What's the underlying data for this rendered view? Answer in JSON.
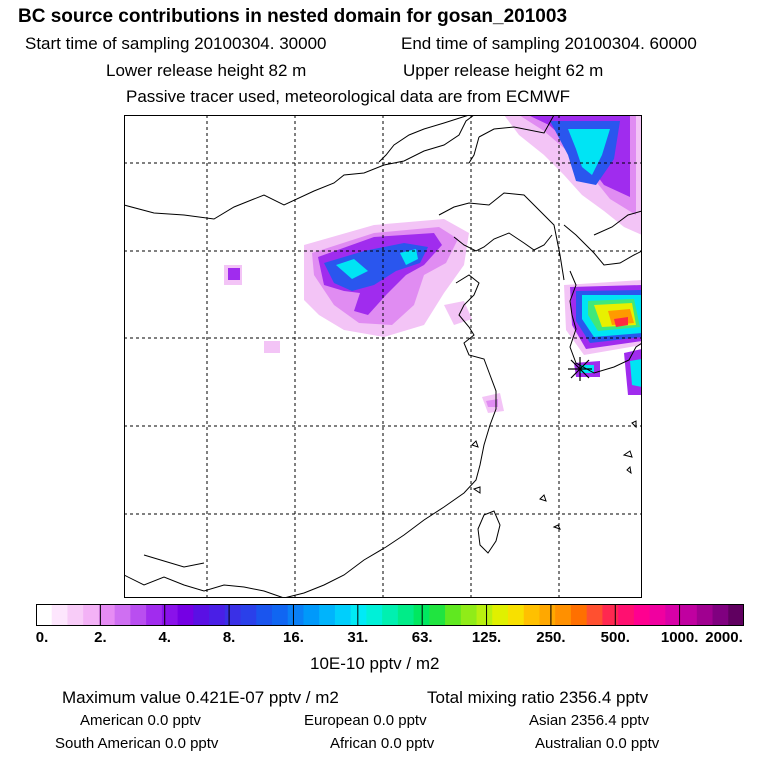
{
  "header": {
    "title": "BC  source contributions in nested domain for gosan_201003",
    "start_label": "Start time of sampling 20100304. 30000",
    "end_label": "End time of sampling 20100304. 60000",
    "lower_label": "Lower release height   82 m",
    "upper_label": "Upper release height   62 m",
    "tracer_note": "Passive tracer used, meteorological data are from ECMWF"
  },
  "colorbar": {
    "tick_labels": [
      "0.",
      "2.",
      "4.",
      "8.",
      "16.",
      "31.",
      "63.",
      "125.",
      "250.",
      "500.",
      "1000.",
      "2000."
    ],
    "colors": [
      "#ffffff",
      "#fde6fd",
      "#f8ccf8",
      "#f3b2f6",
      "#e68cf4",
      "#cf6ff2",
      "#b94ef0",
      "#a12cee",
      "#8a12ea",
      "#7500e4",
      "#5a10e4",
      "#4a1fe6",
      "#3a30e6",
      "#2a40ea",
      "#1a55ee",
      "#1066f2",
      "#0a80f6",
      "#0099fa",
      "#00b4fc",
      "#00cffc",
      "#00eaf6",
      "#00f0d8",
      "#00f0b0",
      "#00ec88",
      "#00e860",
      "#20e440",
      "#60e820",
      "#90ec18",
      "#b8f010",
      "#e0f000",
      "#f8e000",
      "#ffc000",
      "#ffa800",
      "#ff9000",
      "#ff7000",
      "#ff5030",
      "#ff2850",
      "#ff1070",
      "#ff0090",
      "#f000a0",
      "#d800a8",
      "#c000a0",
      "#a00090",
      "#800080",
      "#600060"
    ],
    "unit": "10E-10 pptv / m2"
  },
  "stats": {
    "max_label": "Maximum value  0.421E-07 pptv / m2",
    "total_label": "Total mixing ratio     2356.4 pptv",
    "american": "American          0.0 pptv",
    "european": "European          0.0 pptv",
    "asian": "Asian     2356.4 pptv",
    "south_american": "South American          0.0 pptv",
    "african": "African          0.0 pptv",
    "australian": "Australian          0.0 pptv"
  },
  "map": {
    "receptor_marker": "asterisk-star-icon",
    "plume_colors": {
      "light": "#f3c4f6",
      "pink": "#e08cf2",
      "purple": "#a02cee",
      "blue": "#2a56ee",
      "cyan": "#00e4f4",
      "green": "#40e87a",
      "yellow": "#e8f000",
      "orange": "#ff9a00",
      "red": "#ff2a40"
    }
  }
}
